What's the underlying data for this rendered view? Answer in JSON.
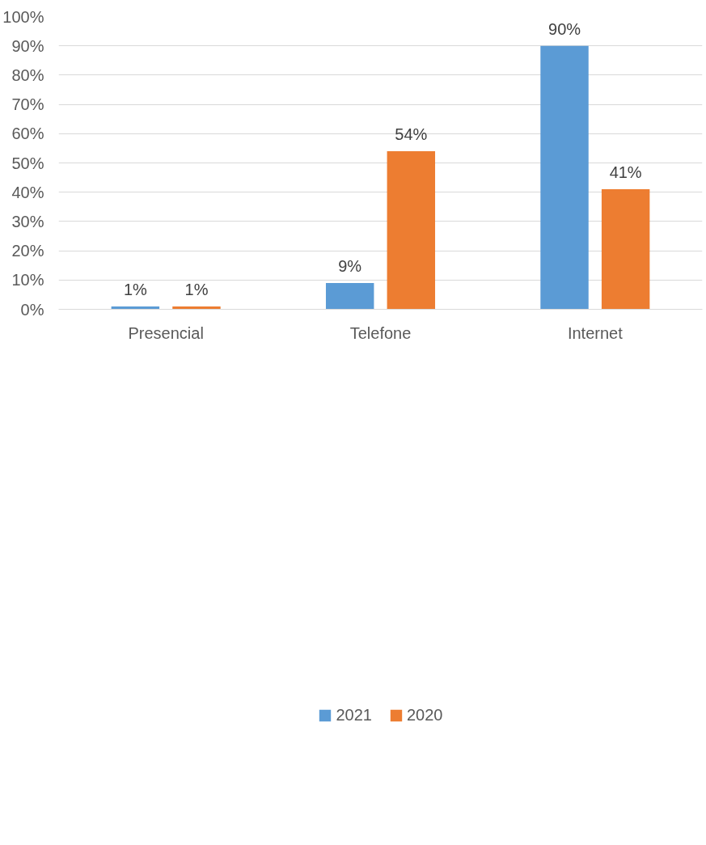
{
  "chart_data": {
    "type": "bar",
    "categories": [
      "Presencial",
      "Telefone",
      "Internet"
    ],
    "series": [
      {
        "name": "2021",
        "color": "#5b9bd5",
        "values": [
          1,
          9,
          90
        ],
        "value_labels": [
          "1%",
          "9%",
          "90%"
        ]
      },
      {
        "name": "2020",
        "color": "#ed7d31",
        "values": [
          1,
          54,
          41
        ],
        "value_labels": [
          "1%",
          "54%",
          "41%"
        ]
      }
    ],
    "ylim": [
      0,
      100
    ],
    "yticks": [
      {
        "value": 0,
        "label": "0%"
      },
      {
        "value": 10,
        "label": "10%"
      },
      {
        "value": 20,
        "label": "20%"
      },
      {
        "value": 30,
        "label": "30%"
      },
      {
        "value": 40,
        "label": "40%"
      },
      {
        "value": 50,
        "label": "50%"
      },
      {
        "value": 60,
        "label": "60%"
      },
      {
        "value": 70,
        "label": "70%"
      },
      {
        "value": 80,
        "label": "80%"
      },
      {
        "value": 90,
        "label": "90%"
      },
      {
        "value": 100,
        "label": "100%"
      }
    ],
    "grid": "y",
    "legend": "bottom"
  }
}
